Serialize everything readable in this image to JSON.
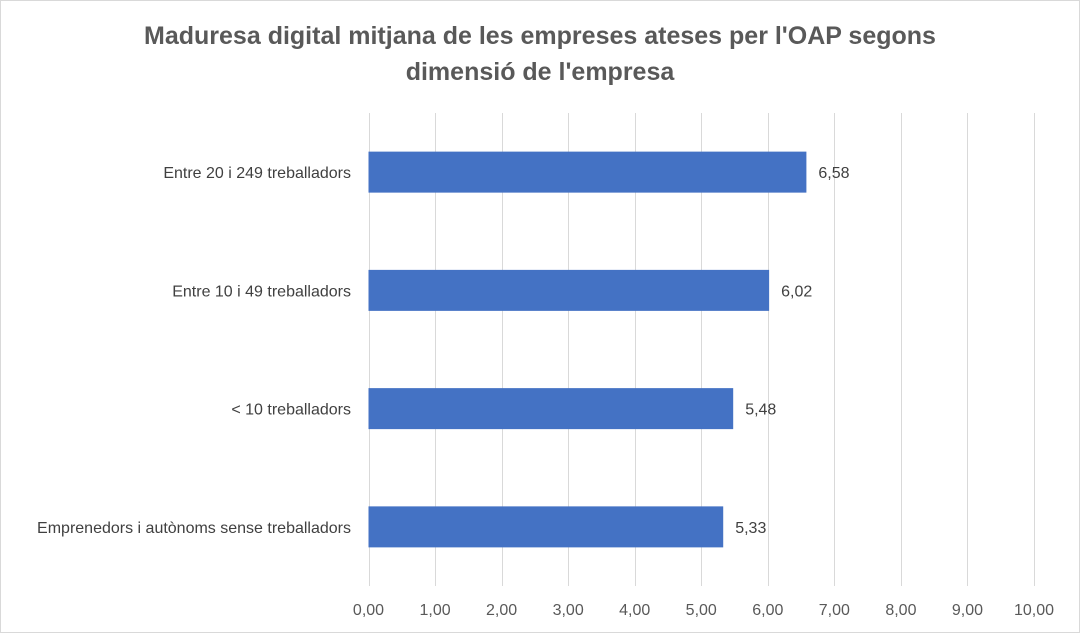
{
  "chart_data": {
    "type": "bar",
    "orientation": "horizontal",
    "title_lines": [
      "Maduresa digital mitjana de les empreses ateses per l'OAP segons",
      "dimensió de l'empresa"
    ],
    "categories": [
      "Entre 20 i 249 treballadors",
      "Entre 10 i 49 treballadors",
      "< 10 treballadors",
      "Emprenedors i autònoms sense treballadors"
    ],
    "values": [
      6.58,
      6.02,
      5.48,
      5.33
    ],
    "data_labels": [
      "6,58",
      "6,02",
      "5,48",
      "5,33"
    ],
    "xlim": [
      0,
      10
    ],
    "x_ticks": [
      0,
      1,
      2,
      3,
      4,
      5,
      6,
      7,
      8,
      9,
      10
    ],
    "x_tick_labels": [
      "0,00",
      "1,00",
      "2,00",
      "3,00",
      "4,00",
      "5,00",
      "6,00",
      "7,00",
      "8,00",
      "9,00",
      "10,00"
    ],
    "grid": "vertical",
    "legend": "none",
    "bar_color": "#4472c4",
    "grid_color": "#d9d9d9"
  }
}
